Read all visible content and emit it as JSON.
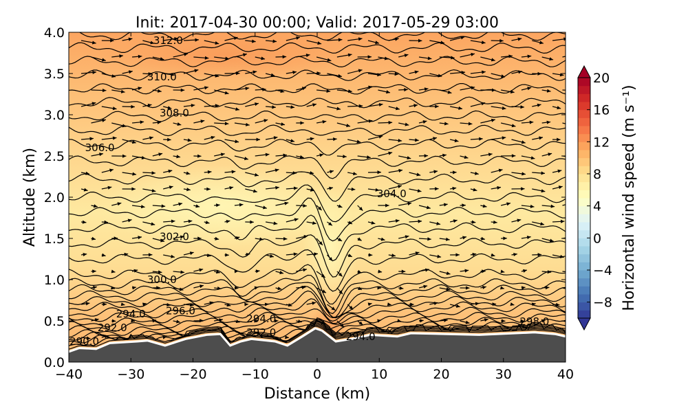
{
  "chart_data": {
    "type": "heatmap",
    "title": "Init: 2017-04-30 00:00; Valid: 2017-05-29 03:00",
    "xlabel": "Distance (km)",
    "ylabel": "Altitude (km)",
    "xlim": [
      -40,
      40
    ],
    "ylim": [
      0,
      4
    ],
    "xticks": [
      "−40",
      "−30",
      "−20",
      "−10",
      "0",
      "10",
      "20",
      "30",
      "40"
    ],
    "xtick_values": [
      -40,
      -30,
      -20,
      -10,
      0,
      10,
      20,
      30,
      40
    ],
    "yticks": [
      "0.0",
      "0.5",
      "1.0",
      "1.5",
      "2.0",
      "2.5",
      "3.0",
      "3.5",
      "4.0"
    ],
    "ytick_values": [
      0,
      0.5,
      1,
      1.5,
      2,
      2.5,
      3,
      3.5,
      4
    ],
    "colorbar": {
      "label": "Horizontal wind speed (m s⁻¹)",
      "range": [
        -10,
        20
      ],
      "extend": "both",
      "ticks": [
        "20",
        "16",
        "12",
        "8",
        "4",
        "0",
        "−4",
        "−8"
      ],
      "tick_values": [
        20,
        16,
        12,
        8,
        4,
        0,
        -4,
        -8
      ],
      "colors": [
        "#313695",
        "#4575b4",
        "#74add1",
        "#abd9e9",
        "#e0f3f8",
        "#ffffbf",
        "#fee090",
        "#fdae61",
        "#f46d43",
        "#d73027",
        "#a50026"
      ]
    },
    "contour_field": "potential temperature (K)",
    "contour_labels": [
      {
        "text": "312.0",
        "x": -24,
        "y": 3.9
      },
      {
        "text": "310.0",
        "x": -25,
        "y": 3.46
      },
      {
        "text": "308.0",
        "x": -23,
        "y": 3.02
      },
      {
        "text": "306.0",
        "x": -35,
        "y": 2.6
      },
      {
        "text": "304.0",
        "x": 12,
        "y": 2.04
      },
      {
        "text": "302.0",
        "x": -23,
        "y": 1.52
      },
      {
        "text": "300.0",
        "x": -25,
        "y": 1.0
      },
      {
        "text": "296.0",
        "x": -22,
        "y": 0.62
      },
      {
        "text": "294.0",
        "x": -30,
        "y": 0.5
      },
      {
        "text": "294.0",
        "x": -9,
        "y": 0.43
      },
      {
        "text": "292.0",
        "x": -9,
        "y": 0.36
      },
      {
        "text": "294.0",
        "x": 7,
        "y": 0.31
      },
      {
        "text": "298.0",
        "x": 35,
        "y": 0.49
      },
      {
        "text": "292.0",
        "x": -33,
        "y": 0.32
      },
      {
        "text": "290.0",
        "x": -37.5,
        "y": 0.25
      }
    ],
    "terrain": {
      "x": [
        -40,
        -38.3,
        -35.6,
        -33.4,
        -29,
        -27.3,
        -24.5,
        -21.2,
        -17.8,
        -15.6,
        -14,
        -12.3,
        -10.6,
        -6.8,
        -4.8,
        -2.4,
        -0.3,
        0.8,
        3,
        6.3,
        8.5,
        12.9,
        15.1,
        26.1,
        35,
        38.3,
        40
      ],
      "y": [
        0.125,
        0.17,
        0.16,
        0.23,
        0.25,
        0.26,
        0.2,
        0.28,
        0.33,
        0.34,
        0.2,
        0.25,
        0.28,
        0.25,
        0.2,
        0.31,
        0.41,
        0.38,
        0.25,
        0.29,
        0.33,
        0.31,
        0.35,
        0.33,
        0.36,
        0.34,
        0.31
      ]
    }
  }
}
